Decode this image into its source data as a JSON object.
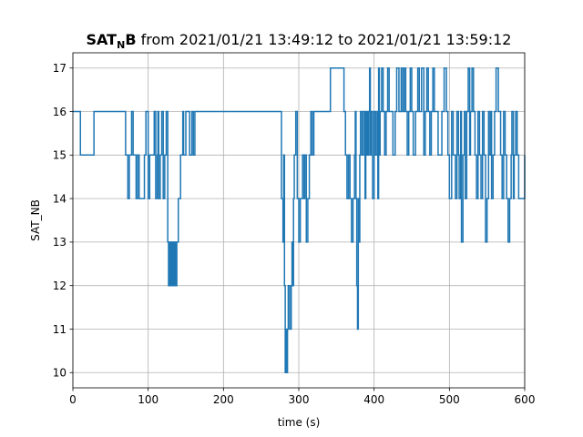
{
  "chart_data": {
    "type": "line",
    "title": {
      "main": "SAT",
      "sub": "N",
      "main2": "B",
      "rest": " from 2021/01/21 13:49:12 to 2021/01/21 13:59:12"
    },
    "xlabel": "time (s)",
    "ylabel": "SAT_NB",
    "xlim": [
      0,
      600
    ],
    "ylim": [
      9.65,
      17.35
    ],
    "xticks": [
      0,
      100,
      200,
      300,
      400,
      500,
      600
    ],
    "xtick_labels": [
      "0",
      "100",
      "200",
      "300",
      "400",
      "500",
      "600"
    ],
    "yticks": [
      10,
      11,
      12,
      13,
      14,
      15,
      16,
      17
    ],
    "ytick_labels": [
      "10",
      "11",
      "12",
      "13",
      "14",
      "15",
      "16",
      "17"
    ],
    "grid": true,
    "line_style": "steps-post",
    "colors": {
      "series": "#1f77b4",
      "grid": "#b0b0b0"
    },
    "series": [
      {
        "x": [
          0,
          10,
          12,
          28,
          70,
          73,
          75,
          78,
          80,
          84,
          86,
          88,
          95,
          97,
          100,
          102,
          108,
          110,
          112,
          113,
          114,
          116,
          118,
          120,
          122,
          124,
          126,
          127,
          128,
          129,
          130,
          131,
          132,
          133,
          134,
          135,
          136,
          137,
          138,
          140,
          143,
          146,
          147,
          150,
          155,
          158,
          160,
          162,
          277,
          279,
          280,
          281,
          282,
          283,
          284,
          285,
          286,
          288,
          290,
          291,
          292,
          293,
          294,
          296,
          298,
          300,
          302,
          305,
          307,
          308,
          310,
          312,
          314,
          316,
          318,
          320,
          342,
          344,
          346,
          360,
          362,
          364,
          366,
          368,
          370,
          372,
          374,
          375,
          376,
          377,
          378,
          379,
          380,
          381,
          382,
          384,
          386,
          388,
          389,
          390,
          391,
          392,
          393,
          394,
          395,
          396,
          398,
          400,
          402,
          404,
          405,
          406,
          407,
          408,
          410,
          412,
          414,
          416,
          418,
          420,
          425,
          428,
          430,
          433,
          436,
          438,
          440,
          442,
          444,
          446,
          448,
          450,
          452,
          455,
          458,
          460,
          463,
          466,
          468,
          470,
          472,
          474,
          476,
          478,
          480,
          485,
          490,
          493,
          496,
          498,
          500,
          503,
          505,
          508,
          510,
          512,
          513,
          515,
          516,
          518,
          520,
          521,
          523,
          525,
          527,
          528,
          530,
          532,
          534,
          536,
          538,
          540,
          542,
          544,
          546,
          548,
          550,
          552,
          553,
          555,
          556,
          558,
          560,
          562,
          565,
          568,
          570,
          572,
          574,
          576,
          578,
          580,
          582,
          583,
          585,
          586,
          588,
          590,
          592,
          600
        ],
        "y": [
          16,
          15,
          15,
          16,
          15,
          14,
          15,
          16,
          15,
          14,
          15,
          14,
          15,
          16,
          14,
          15,
          16,
          14,
          15,
          16,
          14,
          15,
          16,
          14,
          15,
          16,
          13,
          12,
          13,
          12,
          13,
          12,
          13,
          12,
          13,
          12,
          13,
          12,
          13,
          14,
          15,
          16,
          15,
          16,
          15,
          16,
          15,
          16,
          14,
          13,
          15,
          12,
          10,
          11,
          10,
          11,
          12,
          11,
          12,
          13,
          12,
          14,
          15,
          16,
          14,
          13,
          14,
          15,
          14,
          15,
          13,
          14,
          15,
          16,
          15,
          16,
          17,
          17,
          17,
          16,
          15,
          14,
          15,
          14,
          13,
          14,
          15,
          16,
          14,
          12,
          11,
          14,
          13,
          15,
          16,
          15,
          16,
          14,
          16,
          15,
          16,
          15,
          16,
          17,
          15,
          16,
          14,
          16,
          15,
          16,
          14,
          17,
          15,
          16,
          17,
          16,
          15,
          16,
          17,
          16,
          15,
          16,
          17,
          16,
          17,
          16,
          17,
          16,
          15,
          16,
          17,
          16,
          15,
          16,
          17,
          16,
          17,
          15,
          16,
          17,
          16,
          15,
          16,
          17,
          16,
          15,
          16,
          17,
          16,
          15,
          14,
          16,
          15,
          14,
          16,
          15,
          14,
          16,
          13,
          15,
          16,
          14,
          16,
          17,
          15,
          16,
          17,
          16,
          15,
          14,
          16,
          15,
          14,
          16,
          15,
          13,
          14,
          16,
          15,
          16,
          14,
          15,
          16,
          17,
          16,
          15,
          14,
          16,
          15,
          14,
          13,
          14,
          15,
          16,
          14,
          15,
          16,
          15,
          14,
          15
        ]
      }
    ]
  }
}
